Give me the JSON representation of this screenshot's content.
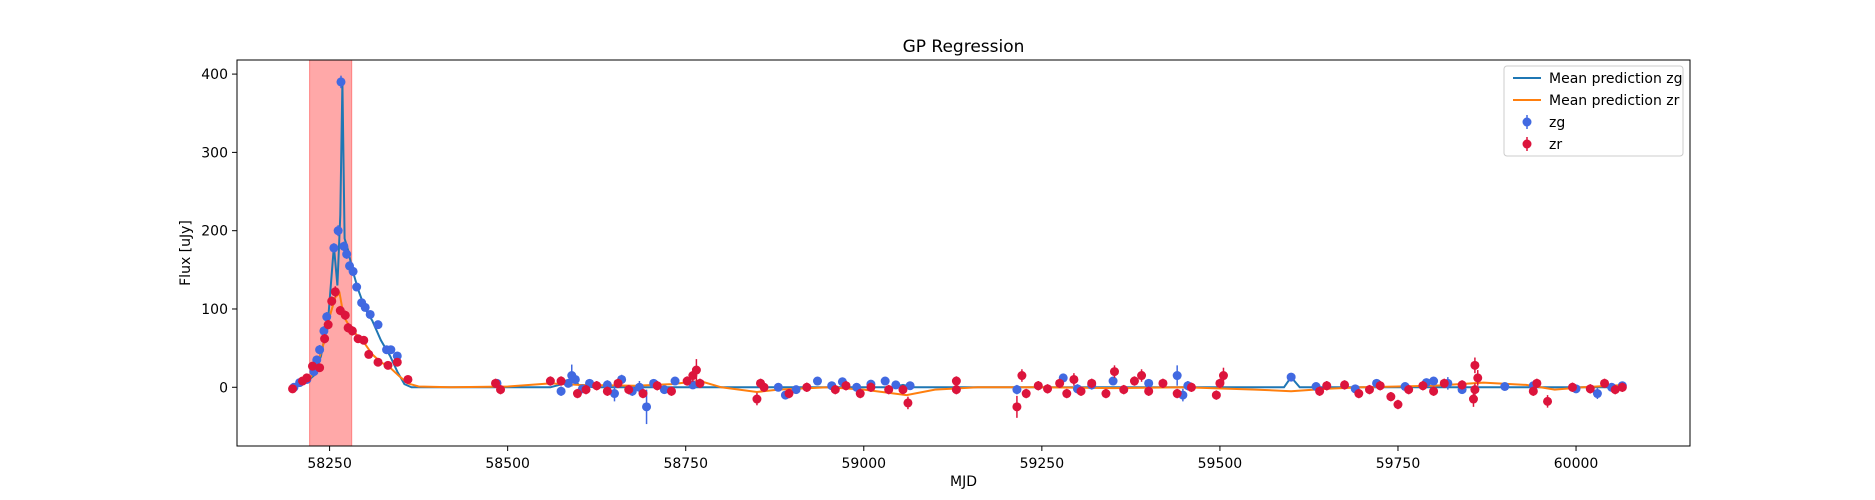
{
  "chart_data": {
    "type": "scatter",
    "title": "GP Regression",
    "xlabel": "MJD",
    "ylabel": "Flux [uJy]",
    "xlim": [
      58120,
      60160
    ],
    "ylim": [
      -75,
      418
    ],
    "xticks": [
      58250,
      58500,
      58750,
      59000,
      59250,
      59500,
      59750,
      60000
    ],
    "yticks": [
      0,
      100,
      200,
      300,
      400
    ],
    "legend_position": "upper right",
    "shaded_region": {
      "x_start": 58222,
      "x_end": 58281,
      "color": "#ffa8a8"
    },
    "series": [
      {
        "name": "Mean prediction zg",
        "kind": "line",
        "color": "#1f77b4",
        "points": [
          [
            58200,
            0
          ],
          [
            58215,
            5
          ],
          [
            58228,
            15
          ],
          [
            58238,
            40
          ],
          [
            58248,
            88
          ],
          [
            58256,
            180
          ],
          [
            58261,
            130
          ],
          [
            58265,
            220
          ],
          [
            58268,
            390
          ],
          [
            58271,
            190
          ],
          [
            58276,
            175
          ],
          [
            58282,
            150
          ],
          [
            58290,
            125
          ],
          [
            58300,
            100
          ],
          [
            58310,
            85
          ],
          [
            58322,
            60
          ],
          [
            58335,
            40
          ],
          [
            58345,
            20
          ],
          [
            58355,
            4
          ],
          [
            58365,
            0
          ],
          [
            58560,
            0
          ],
          [
            58580,
            5
          ],
          [
            58590,
            12
          ],
          [
            58600,
            3
          ],
          [
            58620,
            0
          ],
          [
            59040,
            0
          ],
          [
            59055,
            3
          ],
          [
            59070,
            0
          ],
          [
            59590,
            0
          ],
          [
            59600,
            13
          ],
          [
            59612,
            0
          ],
          [
            60070,
            0
          ]
        ]
      },
      {
        "name": "Mean prediction zr",
        "kind": "line",
        "color": "#ff7f0e",
        "points": [
          [
            58200,
            0
          ],
          [
            58215,
            5
          ],
          [
            58228,
            18
          ],
          [
            58240,
            50
          ],
          [
            58250,
            90
          ],
          [
            58258,
            115
          ],
          [
            58264,
            120
          ],
          [
            58270,
            90
          ],
          [
            58280,
            75
          ],
          [
            58290,
            65
          ],
          [
            58300,
            55
          ],
          [
            58310,
            42
          ],
          [
            58322,
            32
          ],
          [
            58335,
            25
          ],
          [
            58348,
            14
          ],
          [
            58360,
            5
          ],
          [
            58375,
            1
          ],
          [
            58420,
            0
          ],
          [
            58500,
            1
          ],
          [
            58560,
            5
          ],
          [
            58600,
            3
          ],
          [
            58680,
            2
          ],
          [
            58730,
            4
          ],
          [
            58770,
            8
          ],
          [
            58800,
            0
          ],
          [
            58850,
            -6
          ],
          [
            58880,
            -3
          ],
          [
            58950,
            0
          ],
          [
            59000,
            -3
          ],
          [
            59060,
            -10
          ],
          [
            59100,
            -3
          ],
          [
            59160,
            0
          ],
          [
            59250,
            0
          ],
          [
            59350,
            -1
          ],
          [
            59450,
            0
          ],
          [
            59550,
            -3
          ],
          [
            59600,
            -5
          ],
          [
            59650,
            -2
          ],
          [
            59700,
            0
          ],
          [
            59800,
            2
          ],
          [
            59870,
            6
          ],
          [
            59930,
            3
          ],
          [
            59970,
            -3
          ],
          [
            60010,
            0
          ],
          [
            60070,
            3
          ]
        ]
      },
      {
        "name": "zg",
        "kind": "errorbar",
        "color": "#4169e1",
        "points": [
          [
            58200,
            0,
            5
          ],
          [
            58208,
            6,
            4
          ],
          [
            58218,
            10,
            4
          ],
          [
            58228,
            20,
            5
          ],
          [
            58232,
            35,
            5
          ],
          [
            58236,
            48,
            6
          ],
          [
            58242,
            72,
            6
          ],
          [
            58246,
            90,
            6
          ],
          [
            58256,
            178,
            6
          ],
          [
            58262,
            200,
            7
          ],
          [
            58266,
            390,
            8
          ],
          [
            58270,
            180,
            6
          ],
          [
            58274,
            170,
            6
          ],
          [
            58278,
            155,
            6
          ],
          [
            58283,
            148,
            6
          ],
          [
            58288,
            128,
            5
          ],
          [
            58295,
            108,
            5
          ],
          [
            58300,
            102,
            5
          ],
          [
            58307,
            93,
            5
          ],
          [
            58318,
            80,
            5
          ],
          [
            58330,
            48,
            4
          ],
          [
            58336,
            48,
            4
          ],
          [
            58345,
            40,
            4
          ],
          [
            58485,
            5,
            4
          ],
          [
            58575,
            -5,
            6
          ],
          [
            58585,
            5,
            5
          ],
          [
            58590,
            15,
            14
          ],
          [
            58595,
            10,
            6
          ],
          [
            58605,
            -2,
            5
          ],
          [
            58615,
            5,
            5
          ],
          [
            58640,
            3,
            6
          ],
          [
            58650,
            -8,
            10
          ],
          [
            58660,
            10,
            6
          ],
          [
            58675,
            -5,
            6
          ],
          [
            58685,
            0,
            8
          ],
          [
            58695,
            -25,
            22
          ],
          [
            58705,
            5,
            5
          ],
          [
            58720,
            -3,
            5
          ],
          [
            58735,
            8,
            5
          ],
          [
            58760,
            3,
            5
          ],
          [
            58880,
            0,
            5
          ],
          [
            58890,
            -10,
            5
          ],
          [
            58905,
            -3,
            5
          ],
          [
            58935,
            8,
            5
          ],
          [
            58955,
            2,
            5
          ],
          [
            58970,
            7,
            5
          ],
          [
            58990,
            0,
            5
          ],
          [
            59010,
            4,
            5
          ],
          [
            59030,
            8,
            5
          ],
          [
            59045,
            3,
            5
          ],
          [
            59065,
            2,
            5
          ],
          [
            59215,
            -3,
            6
          ],
          [
            59280,
            12,
            5
          ],
          [
            59300,
            -2,
            6
          ],
          [
            59320,
            3,
            6
          ],
          [
            59350,
            8,
            5
          ],
          [
            59400,
            5,
            5
          ],
          [
            59440,
            15,
            13
          ],
          [
            59448,
            -10,
            8
          ],
          [
            59455,
            2,
            6
          ],
          [
            59600,
            13,
            5
          ],
          [
            59635,
            1,
            5
          ],
          [
            59690,
            -2,
            5
          ],
          [
            59720,
            5,
            5
          ],
          [
            59760,
            1,
            5
          ],
          [
            59790,
            6,
            5
          ],
          [
            59800,
            8,
            5
          ],
          [
            59820,
            5,
            8
          ],
          [
            59840,
            -3,
            5
          ],
          [
            59900,
            1,
            5
          ],
          [
            59940,
            2,
            5
          ],
          [
            60000,
            -2,
            5
          ],
          [
            60030,
            -8,
            7
          ],
          [
            60050,
            0,
            5
          ],
          [
            60065,
            2,
            5
          ]
        ]
      },
      {
        "name": "zr",
        "kind": "errorbar",
        "color": "#dc143c",
        "points": [
          [
            58198,
            -2,
            5
          ],
          [
            58212,
            8,
            4
          ],
          [
            58218,
            12,
            4
          ],
          [
            58226,
            27,
            5
          ],
          [
            58236,
            25,
            5
          ],
          [
            58243,
            62,
            6
          ],
          [
            58248,
            80,
            6
          ],
          [
            58253,
            110,
            6
          ],
          [
            58258,
            122,
            7
          ],
          [
            58265,
            98,
            6
          ],
          [
            58272,
            92,
            6
          ],
          [
            58276,
            76,
            6
          ],
          [
            58282,
            72,
            6
          ],
          [
            58290,
            62,
            5
          ],
          [
            58298,
            60,
            5
          ],
          [
            58305,
            42,
            5
          ],
          [
            58318,
            32,
            5
          ],
          [
            58332,
            28,
            5
          ],
          [
            58345,
            32,
            5
          ],
          [
            58360,
            10,
            4
          ],
          [
            58483,
            5,
            6
          ],
          [
            58490,
            -3,
            6
          ],
          [
            58560,
            8,
            6
          ],
          [
            58575,
            8,
            6
          ],
          [
            58598,
            -8,
            6
          ],
          [
            58610,
            -3,
            6
          ],
          [
            58625,
            2,
            6
          ],
          [
            58640,
            -5,
            6
          ],
          [
            58655,
            5,
            6
          ],
          [
            58670,
            -3,
            6
          ],
          [
            58690,
            -8,
            6
          ],
          [
            58710,
            2,
            6
          ],
          [
            58730,
            -5,
            6
          ],
          [
            58752,
            8,
            6
          ],
          [
            58760,
            15,
            8
          ],
          [
            58765,
            22,
            14
          ],
          [
            58770,
            5,
            6
          ],
          [
            58850,
            -15,
            8
          ],
          [
            58855,
            5,
            6
          ],
          [
            58860,
            0,
            6
          ],
          [
            58895,
            -8,
            6
          ],
          [
            58920,
            0,
            6
          ],
          [
            58960,
            -3,
            6
          ],
          [
            58975,
            2,
            6
          ],
          [
            58995,
            -8,
            6
          ],
          [
            59010,
            0,
            6
          ],
          [
            59035,
            -3,
            6
          ],
          [
            59055,
            -3,
            6
          ],
          [
            59062,
            -20,
            8
          ],
          [
            59130,
            8,
            6
          ],
          [
            59130,
            -3,
            6
          ],
          [
            59215,
            -25,
            14
          ],
          [
            59222,
            15,
            8
          ],
          [
            59228,
            -8,
            6
          ],
          [
            59245,
            2,
            6
          ],
          [
            59258,
            -2,
            6
          ],
          [
            59275,
            5,
            6
          ],
          [
            59285,
            -8,
            6
          ],
          [
            59295,
            10,
            8
          ],
          [
            59305,
            -5,
            6
          ],
          [
            59320,
            5,
            6
          ],
          [
            59340,
            -8,
            6
          ],
          [
            59352,
            20,
            8
          ],
          [
            59365,
            -3,
            6
          ],
          [
            59380,
            8,
            6
          ],
          [
            59390,
            15,
            8
          ],
          [
            59400,
            -5,
            6
          ],
          [
            59420,
            5,
            6
          ],
          [
            59440,
            -8,
            6
          ],
          [
            59460,
            0,
            6
          ],
          [
            59495,
            -10,
            6
          ],
          [
            59500,
            5,
            6
          ],
          [
            59505,
            15,
            10
          ],
          [
            59640,
            -5,
            6
          ],
          [
            59650,
            2,
            6
          ],
          [
            59675,
            3,
            6
          ],
          [
            59695,
            -8,
            6
          ],
          [
            59710,
            -3,
            6
          ],
          [
            59725,
            2,
            6
          ],
          [
            59740,
            -12,
            6
          ],
          [
            59750,
            -22,
            6
          ],
          [
            59765,
            -3,
            6
          ],
          [
            59785,
            2,
            6
          ],
          [
            59800,
            -5,
            6
          ],
          [
            59815,
            5,
            6
          ],
          [
            59840,
            3,
            6
          ],
          [
            59858,
            28,
            10
          ],
          [
            59862,
            12,
            10
          ],
          [
            59856,
            -15,
            10
          ],
          [
            59858,
            -3,
            8
          ],
          [
            59940,
            -5,
            6
          ],
          [
            59945,
            5,
            6
          ],
          [
            59960,
            -18,
            8
          ],
          [
            59995,
            0,
            6
          ],
          [
            60020,
            -2,
            6
          ],
          [
            60040,
            5,
            6
          ],
          [
            60055,
            -3,
            6
          ],
          [
            60065,
            0,
            6
          ]
        ]
      }
    ]
  }
}
